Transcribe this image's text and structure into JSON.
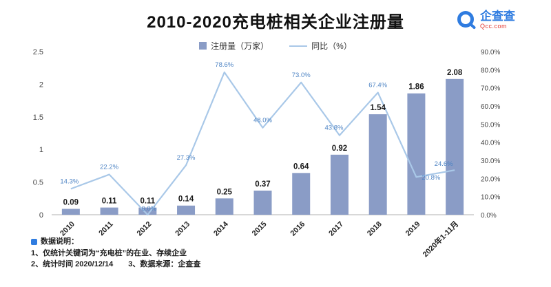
{
  "title": "2010-2020充电桩相关企业注册量",
  "logo": {
    "name": "企查查",
    "domain": "Qcc.com"
  },
  "legend": {
    "bar_label": "注册量（万家）",
    "line_label": "同比（%）"
  },
  "chart_data": {
    "type": "bar+line",
    "title": "2010-2020充电桩相关企业注册量",
    "categories": [
      "2010",
      "2011",
      "2012",
      "2013",
      "2014",
      "2015",
      "2016",
      "2017",
      "2018",
      "2019",
      "2020年1-11月"
    ],
    "series": [
      {
        "name": "注册量（万家）",
        "type": "bar",
        "axis": "left",
        "color": "#8a9cc6",
        "values": [
          0.09,
          0.11,
          0.11,
          0.14,
          0.25,
          0.37,
          0.64,
          0.92,
          1.54,
          1.86,
          2.08
        ]
      },
      {
        "name": "同比（%）",
        "type": "line",
        "axis": "right",
        "color": "#a9c8e8",
        "values": [
          14.3,
          22.2,
          0.0,
          27.3,
          78.6,
          48.0,
          73.0,
          43.8,
          67.4,
          20.8,
          24.6
        ]
      }
    ],
    "bar_labels": [
      "0.09",
      "0.11",
      "0.11",
      "0.14",
      "0.25",
      "0.37",
      "0.64",
      "0.92",
      "1.54",
      "1.86",
      "2.08"
    ],
    "line_labels": [
      "14.3%",
      "22.2%",
      "0.0%",
      "27.3%",
      "78.6%",
      "48.0%",
      "73.0%",
      "43.8%",
      "67.4%",
      "20.8%",
      "24.6%"
    ],
    "left_axis": {
      "min": 0,
      "max": 2.5,
      "step": 0.5,
      "ticks": [
        "0",
        "0.5",
        "1",
        "1.5",
        "2",
        "2.5"
      ]
    },
    "right_axis": {
      "min": 0,
      "max": 90,
      "step": 10,
      "ticks": [
        "0.0%",
        "10.0%",
        "20.0%",
        "30.0%",
        "40.0%",
        "50.0%",
        "60.0%",
        "70.0%",
        "80.0%",
        "90.0%"
      ]
    },
    "grid": false,
    "legend_position": "top-center"
  },
  "footnotes": {
    "heading": "数据说明：",
    "line1": "1、仅统计关键词为“充电桩”的在业、存续企业",
    "line2": "2、统计时间 2020/12/14　　3、数据来源：企查查"
  }
}
